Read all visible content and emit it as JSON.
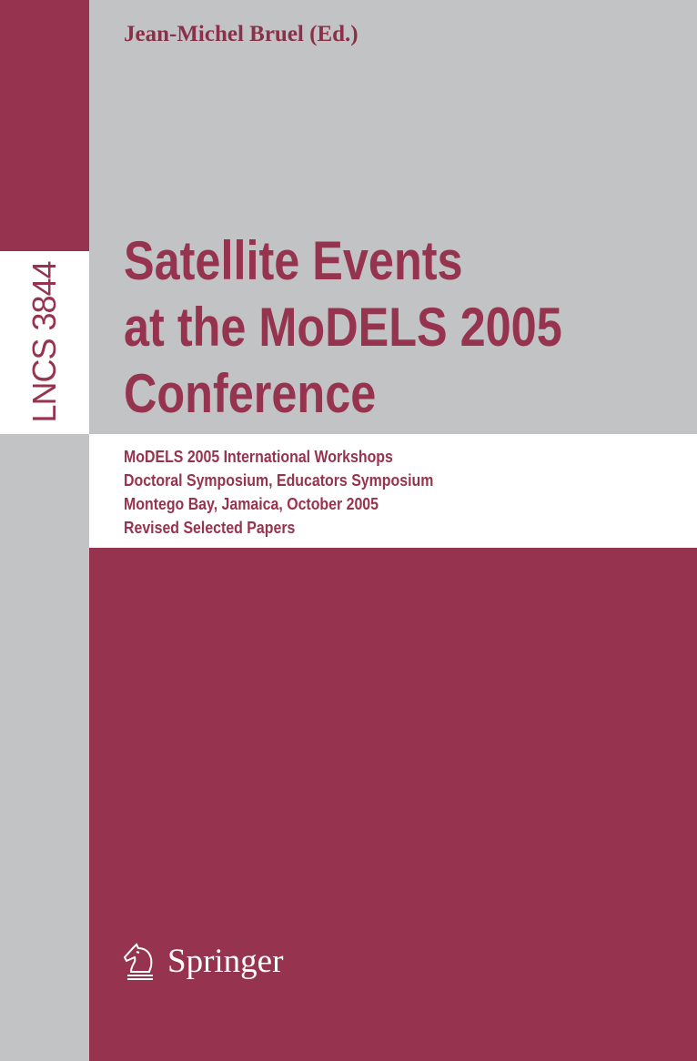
{
  "cover": {
    "series_label": "LNCS 3844",
    "editor": "Jean-Michel Bruel (Ed.)",
    "title_lines": [
      "Satellite Events",
      "at the MoDELS 2005",
      "Conference"
    ],
    "subtitle_lines": [
      "MoDELS 2005 International Workshops",
      "Doctoral Symposium, Educators Symposium",
      "Montego Bay, Jamaica, October 2005",
      "Revised Selected Papers"
    ],
    "publisher": "Springer",
    "publisher_logo_icon": "knight-chess-icon",
    "colors": {
      "maroon": "#96344f",
      "gray": "#c2c3c5",
      "white": "#ffffff"
    }
  }
}
